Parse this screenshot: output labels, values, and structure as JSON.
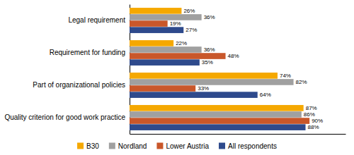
{
  "chart_data": {
    "type": "bar",
    "orientation": "horizontal",
    "categories": [
      "Legal requirement",
      "Requirement for funding",
      "Part of organizational policies",
      "Quality criterion for good work practice"
    ],
    "series": [
      {
        "name": "B30",
        "color": "#F5A800",
        "values": [
          26,
          22,
          74,
          87
        ],
        "value_labels": [
          "26%",
          "22%",
          "74%",
          "87%"
        ]
      },
      {
        "name": "Nordland",
        "color": "#A0A0A0",
        "values": [
          36,
          36,
          82,
          86
        ],
        "value_labels": [
          "36%",
          "36%",
          "82%",
          "86%"
        ]
      },
      {
        "name": "Lower Austria",
        "color": "#C9572A",
        "values": [
          19,
          48,
          33,
          90
        ],
        "value_labels": [
          "19%",
          "48%",
          "33%",
          "90%"
        ]
      },
      {
        "name": "All respondents",
        "color": "#2E4A8C",
        "values": [
          27,
          35,
          64,
          88
        ],
        "value_labels": [
          "27%",
          "35%",
          "64%",
          "88%"
        ]
      }
    ],
    "xlim": [
      0,
      108
    ],
    "data_labels": true,
    "tick_labels": "y",
    "grid": false,
    "legend": "bottom"
  }
}
